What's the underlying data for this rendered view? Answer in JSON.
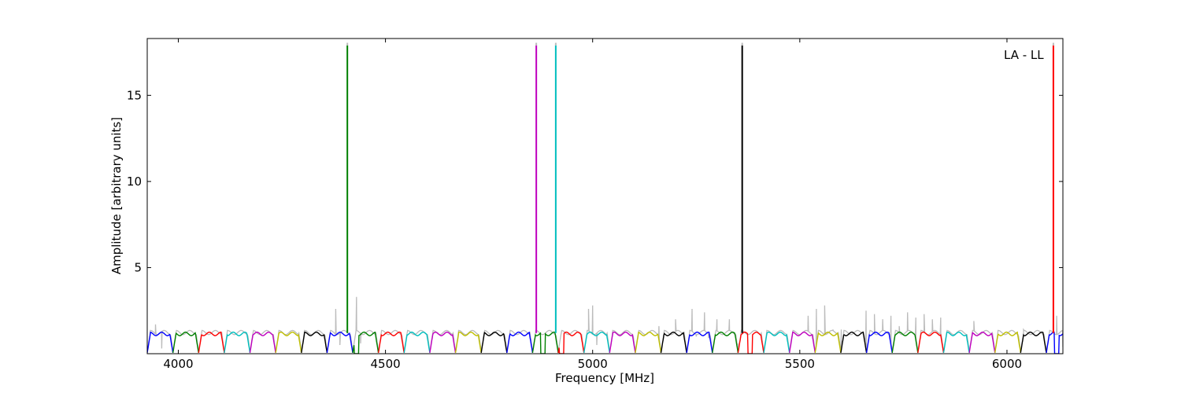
{
  "chart_data": {
    "type": "line",
    "title": "",
    "annotation": "LA - LL",
    "xlabel": "Frequency [MHz]",
    "ylabel": "Amplitude [arbitrary units]",
    "xlim": [
      3925,
      6135
    ],
    "ylim": [
      0,
      18.3
    ],
    "xticks": [
      4000,
      4500,
      5000,
      5500,
      6000
    ],
    "yticks": [
      5,
      10,
      15
    ],
    "grid": false,
    "legend": "none",
    "background_series": {
      "color": "#bbbbbb",
      "points": [
        [
          3925,
          0.2
        ],
        [
          3945,
          1.7
        ],
        [
          3960,
          0.3
        ],
        [
          4380,
          2.6
        ],
        [
          4390,
          0.5
        ],
        [
          4430,
          3.3
        ],
        [
          4440,
          0.6
        ],
        [
          4990,
          2.6
        ],
        [
          5000,
          2.8
        ],
        [
          5010,
          0.5
        ],
        [
          5160,
          1.6
        ],
        [
          5200,
          2.0
        ],
        [
          5240,
          2.6
        ],
        [
          5250,
          1.0
        ],
        [
          5270,
          2.4
        ],
        [
          5280,
          0.9
        ],
        [
          5300,
          2.0
        ],
        [
          5330,
          2.0
        ],
        [
          5350,
          0.6
        ],
        [
          5520,
          2.2
        ],
        [
          5540,
          2.6
        ],
        [
          5560,
          2.8
        ],
        [
          5580,
          1.4
        ],
        [
          5600,
          1.4
        ],
        [
          5660,
          2.5
        ],
        [
          5680,
          2.3
        ],
        [
          5700,
          2.0
        ],
        [
          5720,
          2.2
        ],
        [
          5740,
          1.6
        ],
        [
          5760,
          2.4
        ],
        [
          5780,
          2.1
        ],
        [
          5800,
          2.3
        ],
        [
          5820,
          2.0
        ],
        [
          5840,
          2.1
        ],
        [
          5860,
          1.2
        ],
        [
          5920,
          1.9
        ],
        [
          6040,
          1.4
        ],
        [
          6120,
          2.2
        ],
        [
          6135,
          0.4
        ]
      ]
    },
    "series_colors": [
      "#0000ff",
      "#008000",
      "#ff0000",
      "#00bfbf",
      "#bf00bf",
      "#bfbf00",
      "#000000"
    ],
    "band_ripple": {
      "start_mhz": 3925,
      "end_mhz": 6135,
      "band_width_mhz": 62,
      "baseline": 1.15,
      "dip_min": 0.05
    },
    "spikes": [
      {
        "x": 4408,
        "y": 17.9,
        "color": "#008000"
      },
      {
        "x": 4864,
        "y": 17.9,
        "color": "#bf00bf"
      },
      {
        "x": 4911,
        "y": 17.9,
        "color": "#00bfbf"
      },
      {
        "x": 5361,
        "y": 17.9,
        "color": "#000000"
      },
      {
        "x": 6112,
        "y": 17.9,
        "color": "#ff0000"
      }
    ],
    "deep_dips": [
      4430,
      4880,
      4925,
      5380,
      6120
    ]
  }
}
